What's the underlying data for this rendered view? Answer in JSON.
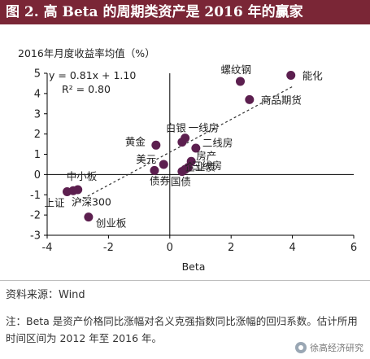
{
  "figure_title": "图 2. 高 Beta 的周期类资产是 2016 年的赢家",
  "source": "资料来源：Wind",
  "note": "注：Beta 是资产价格同比涨幅对名义克强指数同比涨幅的回归系数。估计所用时间区间为 2012 年至 2016 年。",
  "watermark": "徐高经济研究",
  "colors": {
    "title_bg": "#7a2636",
    "point": "#5c1f4f",
    "axis": "#000000",
    "trend": "#333333"
  },
  "chart_data": {
    "type": "scatter",
    "title": "2016年月度收益率均值（%）",
    "xlabel": "Beta",
    "ylabel": "",
    "xlim": [
      -4,
      6
    ],
    "ylim": [
      -3,
      5
    ],
    "xticks": [
      -4,
      -2,
      0,
      2,
      4,
      6
    ],
    "yticks": [
      -3,
      -2,
      -1,
      0,
      1,
      2,
      3,
      4,
      5
    ],
    "grid": false,
    "legend": "none",
    "equation": "y = 0.81x + 1.10",
    "r_squared": "R² = 0.80",
    "trendline": {
      "slope": 0.81,
      "intercept": 1.1,
      "x_range": [
        -3.1,
        4.0
      ]
    },
    "points": [
      {
        "label": "螺纹钢",
        "x": 2.3,
        "y": 4.6
      },
      {
        "label": "能化",
        "x": 3.95,
        "y": 4.9
      },
      {
        "label": "商品期货",
        "x": 2.6,
        "y": 3.7
      },
      {
        "label": "一线房",
        "x": 0.5,
        "y": 1.8
      },
      {
        "label": "白银",
        "x": 0.4,
        "y": 1.6
      },
      {
        "label": "黄金",
        "x": -0.45,
        "y": 1.45
      },
      {
        "label": "二线房",
        "x": 0.85,
        "y": 1.3
      },
      {
        "label": "美元",
        "x": -0.2,
        "y": 0.5
      },
      {
        "label": "房产",
        "x": 0.7,
        "y": 0.65
      },
      {
        "label": "企业债",
        "x": 0.6,
        "y": 0.35
      },
      {
        "label": "三线房",
        "x": 0.5,
        "y": 0.25
      },
      {
        "label": "国债",
        "x": 0.4,
        "y": 0.15
      },
      {
        "label": "债券",
        "x": -0.5,
        "y": 0.2
      },
      {
        "label": "中小板",
        "x": -3.0,
        "y": -0.75
      },
      {
        "label": "上证",
        "x": -3.35,
        "y": -0.85
      },
      {
        "label": "沪深300",
        "x": -3.15,
        "y": -0.8
      },
      {
        "label": "创业板",
        "x": -2.65,
        "y": -2.1
      }
    ]
  }
}
